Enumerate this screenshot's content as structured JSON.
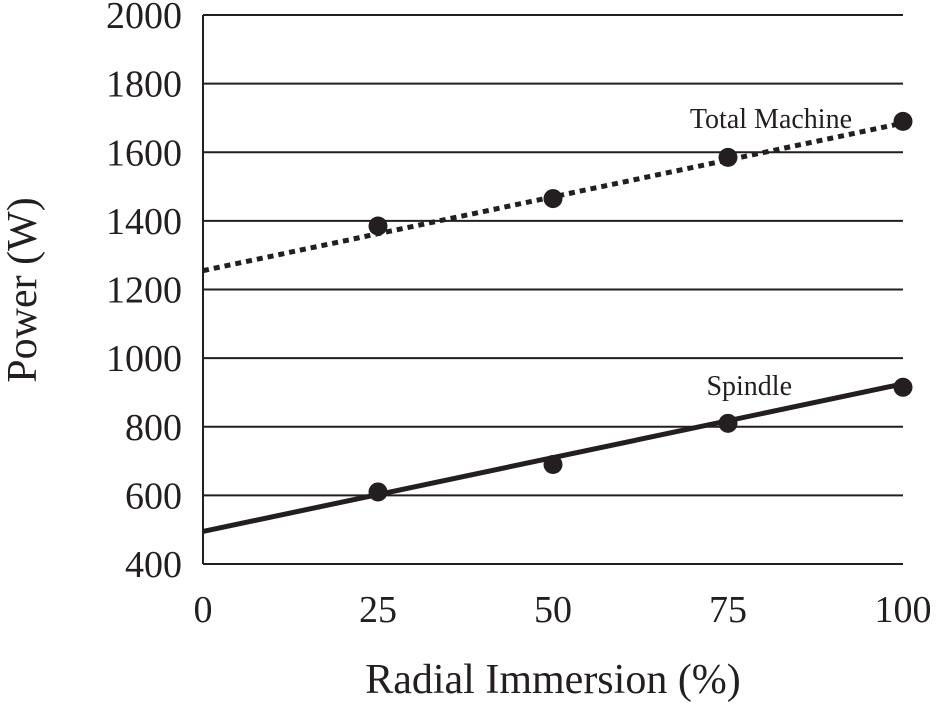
{
  "chart_data": {
    "type": "scatter",
    "xlabel": "Radial Immersion (%)",
    "ylabel": "Power (W)",
    "xlim": [
      0,
      100
    ],
    "ylim": [
      400,
      2000
    ],
    "xticks": [
      0,
      25,
      50,
      75,
      100
    ],
    "yticks": [
      400,
      600,
      800,
      1000,
      1200,
      1400,
      1600,
      1800,
      2000
    ],
    "grid": "horizontal",
    "series": [
      {
        "name": "Total Machine",
        "x": [
          25,
          50,
          75,
          100
        ],
        "y": [
          1385,
          1465,
          1585,
          1690
        ],
        "trendline": {
          "style": "dotted",
          "x": [
            0,
            100
          ],
          "y": [
            1255,
            1685
          ]
        },
        "color": "#231f20"
      },
      {
        "name": "Spindle",
        "x": [
          25,
          50,
          75,
          100
        ],
        "y": [
          610,
          690,
          810,
          915
        ],
        "trendline": {
          "style": "solid",
          "x": [
            0,
            100
          ],
          "y": [
            495,
            925
          ]
        },
        "color": "#231f20"
      }
    ]
  }
}
